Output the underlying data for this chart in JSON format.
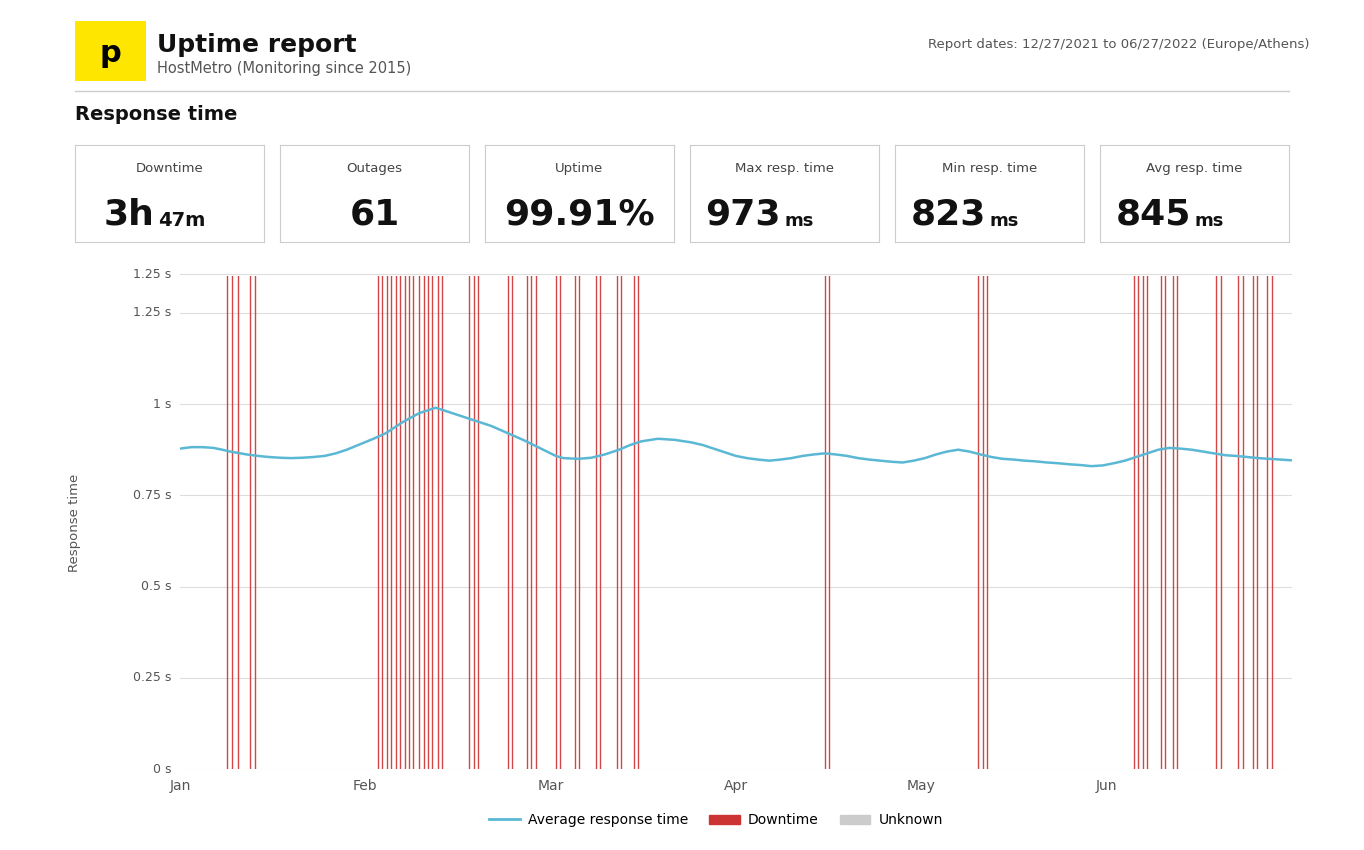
{
  "title": "Uptime report",
  "subtitle": "HostMetro (Monitoring since 2015)",
  "report_dates": "Report dates: 12/27/2021 to 06/27/2022 (Europe/Athens)",
  "section_title": "Response time",
  "stats": [
    {
      "label": "Downtime",
      "main": "3h",
      "sub": "47m",
      "unit": ""
    },
    {
      "label": "Outages",
      "main": "61",
      "sub": "",
      "unit": ""
    },
    {
      "label": "Uptime",
      "main": "99.91",
      "sub": "",
      "unit": "%"
    },
    {
      "label": "Max resp. time",
      "main": "973",
      "sub": "",
      "unit": "ms"
    },
    {
      "label": "Min resp. time",
      "main": "823",
      "sub": "",
      "unit": "ms"
    },
    {
      "label": "Avg resp. time",
      "main": "845",
      "sub": "",
      "unit": "ms"
    }
  ],
  "bg_color": "#ffffff",
  "grid_color": "#dddddd",
  "line_color": "#5bb8d4",
  "downtime_color": "#cc3333",
  "sep_color": "#cccccc",
  "text_color": "#333333",
  "label_color": "#666666",
  "box_border": "#cccccc",
  "ytick_labels": [
    "0 s",
    "0.25 s",
    "0.5 s",
    "0.75 s",
    "1 s",
    "1.25 s"
  ],
  "yticks": [
    0,
    0.25,
    0.5,
    0.75,
    1.0,
    1.25
  ],
  "xtick_labels": [
    "Jan",
    "Feb",
    "Mar",
    "Apr",
    "May",
    "Jun"
  ],
  "ymin": 0.0,
  "ymax": 1.35,
  "response_line_x": [
    0.0,
    0.01,
    0.02,
    0.03,
    0.038,
    0.045,
    0.06,
    0.07,
    0.08,
    0.09,
    0.1,
    0.11,
    0.12,
    0.13,
    0.14,
    0.15,
    0.162,
    0.174,
    0.185,
    0.2,
    0.215,
    0.23,
    0.24,
    0.25,
    0.265,
    0.28,
    0.295,
    0.31,
    0.32,
    0.33,
    0.338,
    0.345,
    0.358,
    0.37,
    0.382,
    0.395,
    0.405,
    0.415,
    0.43,
    0.445,
    0.46,
    0.47,
    0.48,
    0.49,
    0.5,
    0.51,
    0.52,
    0.53,
    0.54,
    0.55,
    0.56,
    0.57,
    0.58,
    0.59,
    0.6,
    0.61,
    0.62,
    0.63,
    0.64,
    0.65,
    0.66,
    0.67,
    0.68,
    0.69,
    0.7,
    0.71,
    0.72,
    0.73,
    0.74,
    0.75,
    0.76,
    0.77,
    0.78,
    0.79,
    0.8,
    0.81,
    0.82,
    0.83,
    0.84,
    0.85,
    0.86,
    0.87,
    0.88,
    0.89,
    0.9,
    0.91,
    0.92,
    0.93,
    0.94,
    0.95,
    0.96,
    0.97,
    0.98,
    0.99,
    1.0
  ],
  "response_line_y": [
    0.878,
    0.882,
    0.882,
    0.88,
    0.875,
    0.87,
    0.862,
    0.858,
    0.855,
    0.853,
    0.852,
    0.853,
    0.855,
    0.858,
    0.865,
    0.875,
    0.89,
    0.905,
    0.92,
    0.95,
    0.975,
    0.99,
    0.98,
    0.97,
    0.955,
    0.94,
    0.92,
    0.9,
    0.885,
    0.87,
    0.858,
    0.852,
    0.85,
    0.853,
    0.862,
    0.875,
    0.888,
    0.898,
    0.905,
    0.902,
    0.895,
    0.888,
    0.878,
    0.868,
    0.858,
    0.852,
    0.848,
    0.845,
    0.848,
    0.852,
    0.858,
    0.862,
    0.865,
    0.862,
    0.858,
    0.852,
    0.848,
    0.845,
    0.842,
    0.84,
    0.845,
    0.852,
    0.862,
    0.87,
    0.875,
    0.87,
    0.862,
    0.855,
    0.85,
    0.848,
    0.845,
    0.843,
    0.84,
    0.838,
    0.835,
    0.833,
    0.83,
    0.832,
    0.838,
    0.845,
    0.855,
    0.865,
    0.875,
    0.88,
    0.878,
    0.875,
    0.87,
    0.865,
    0.86,
    0.858,
    0.855,
    0.852,
    0.85,
    0.848,
    0.846
  ],
  "downtime_positions": [
    0.042,
    0.047,
    0.052,
    0.063,
    0.067,
    0.178,
    0.182,
    0.186,
    0.19,
    0.194,
    0.198,
    0.202,
    0.206,
    0.21,
    0.215,
    0.219,
    0.223,
    0.227,
    0.232,
    0.236,
    0.26,
    0.264,
    0.268,
    0.295,
    0.299,
    0.312,
    0.316,
    0.32,
    0.338,
    0.342,
    0.355,
    0.359,
    0.374,
    0.378,
    0.393,
    0.397,
    0.408,
    0.412,
    0.58,
    0.584,
    0.718,
    0.722,
    0.726,
    0.858,
    0.862,
    0.866,
    0.87,
    0.882,
    0.886,
    0.893,
    0.897,
    0.932,
    0.936,
    0.952,
    0.956,
    0.965,
    0.969,
    0.978,
    0.982
  ]
}
